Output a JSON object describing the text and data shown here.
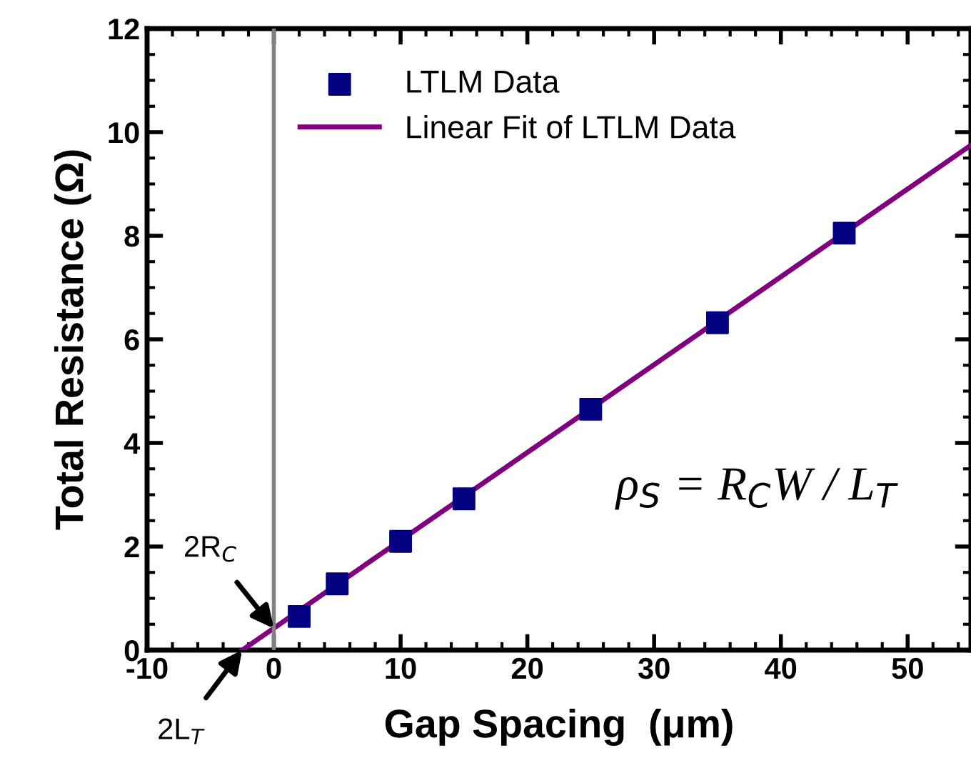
{
  "chart_data": {
    "type": "scatter",
    "xlabel": "Gap Spacing  (μm)",
    "ylabel": "Total Resistance (Ω)",
    "xlim": [
      -10,
      55
    ],
    "xticks": [
      -10,
      0,
      10,
      20,
      30,
      40,
      50
    ],
    "ylim": [
      0,
      12
    ],
    "yticks": [
      0,
      2,
      4,
      6,
      8,
      10,
      12
    ],
    "series": [
      {
        "name": "LTLM Data",
        "marker": "square",
        "color": "#000080",
        "x": [
          2,
          5,
          10,
          15,
          25,
          35,
          45
        ],
        "values": [
          0.65,
          1.28,
          2.1,
          2.92,
          4.65,
          6.32,
          8.05
        ]
      },
      {
        "name": "Linear Fit of LTLM Data",
        "type": "line",
        "marker": "none",
        "line_style": "solid",
        "color": "#800080",
        "x": [
          -2.5,
          55
        ],
        "values": [
          0,
          9.75
        ]
      }
    ],
    "ref_lines": [
      {
        "axis": "x",
        "value": 0,
        "color": "#808080"
      }
    ],
    "annotations": [
      {
        "text": "2R$_{C}$",
        "x": 0,
        "y": 0.42
      },
      {
        "text": "2L$_{T}$",
        "x": -2.5,
        "y": 0
      },
      "ρ$_{S}$ = R$_{C}$W / L$_{T}$"
    ],
    "legend": "top",
    "grid": false
  }
}
